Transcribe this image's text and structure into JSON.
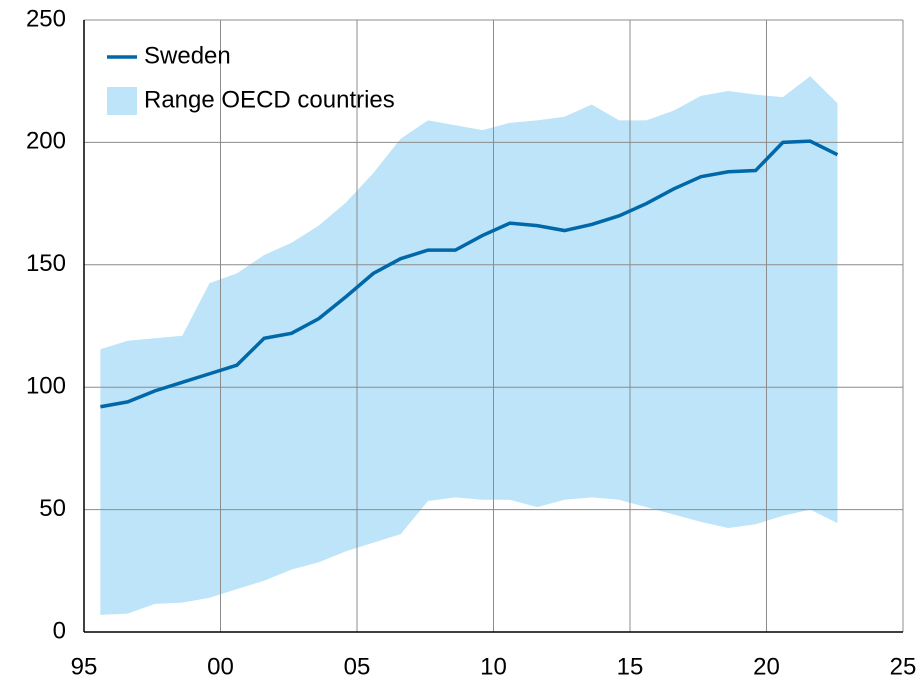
{
  "chart_data": {
    "type": "line",
    "x": [
      1995.6,
      1996.6,
      1997.6,
      1998.6,
      1999.6,
      2000.6,
      2001.6,
      2002.6,
      2003.6,
      2004.6,
      2005.6,
      2006.6,
      2007.6,
      2008.6,
      2009.6,
      2010.6,
      2011.6,
      2012.6,
      2013.6,
      2014.6,
      2015.6,
      2016.6,
      2017.6,
      2018.6,
      2019.6,
      2020.6,
      2021.6,
      2022.6
    ],
    "series": [
      {
        "name": "Sweden",
        "color": "#0068a8",
        "values": [
          92,
          94,
          98.5,
          102,
          105.5,
          109,
          120,
          122,
          128,
          137,
          146.5,
          152.5,
          156,
          156,
          162,
          167,
          166,
          164,
          166.5,
          170,
          175,
          181,
          186,
          188,
          188.5,
          200,
          200.5,
          195
        ]
      }
    ],
    "band": {
      "name": "Range OECD countries",
      "color": "#bde4f8",
      "upper": [
        115.5,
        119,
        120,
        121,
        142.5,
        146.5,
        154,
        159,
        166,
        175.5,
        187.5,
        201.5,
        209,
        207,
        205,
        208,
        209,
        210.5,
        215.5,
        209,
        209,
        213,
        219,
        221,
        219.5,
        218.5,
        227,
        216
      ],
      "lower": [
        7,
        7.5,
        11.5,
        12,
        14,
        17.5,
        21,
        25.5,
        28.5,
        33,
        36.5,
        40,
        53.5,
        55,
        54,
        54,
        51,
        54,
        55,
        54,
        51,
        48,
        45,
        42.5,
        44,
        47.5,
        50,
        44.5
      ]
    },
    "xlim": [
      1995,
      2025
    ],
    "xticks": [
      {
        "value": 1995,
        "label": "95"
      },
      {
        "value": 2000,
        "label": "00"
      },
      {
        "value": 2005,
        "label": "05"
      },
      {
        "value": 2010,
        "label": "10"
      },
      {
        "value": 2015,
        "label": "15"
      },
      {
        "value": 2020,
        "label": "20"
      },
      {
        "value": 2025,
        "label": "25"
      }
    ],
    "ylim": [
      0,
      250
    ],
    "yticks": [
      0,
      50,
      100,
      150,
      200,
      250
    ],
    "grid": true
  }
}
